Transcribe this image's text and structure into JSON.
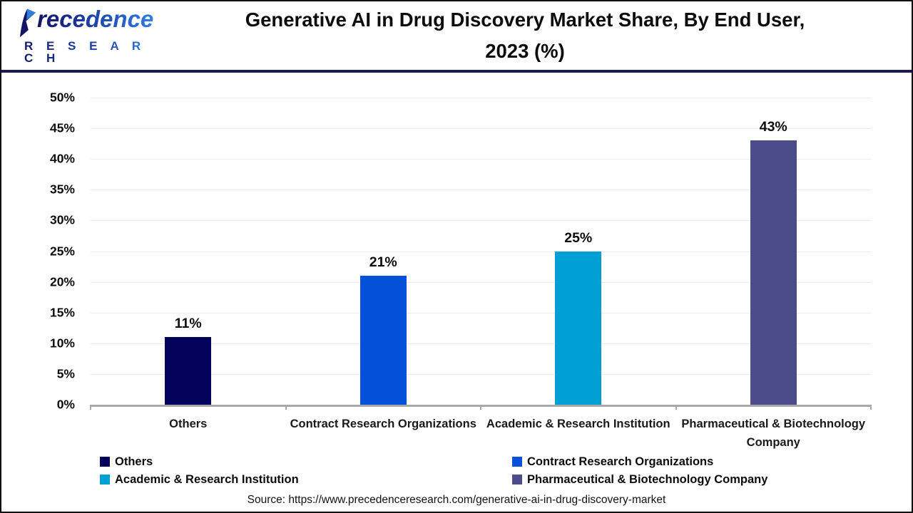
{
  "header": {
    "brand_line1": "recedence",
    "brand_line2": "R E S E A R C H",
    "title_line1": "Generative AI in Drug Discovery Market Share, By End User,",
    "title_line2": "2023 (%)"
  },
  "chart_data": {
    "type": "bar",
    "title": "Generative AI in Drug Discovery Market Share, By End User, 2023 (%)",
    "categories": [
      "Others",
      "Contract Research Organizations",
      "Academic & Research Institution",
      "Pharmaceutical & Biotechnology Company"
    ],
    "values": [
      11,
      21,
      25,
      43
    ],
    "value_labels": [
      "11%",
      "21%",
      "25%",
      "43%"
    ],
    "bar_colors": [
      "#03025a",
      "#0450d8",
      "#009fd4",
      "#4d4c8a"
    ],
    "xlabel": "",
    "ylabel": "",
    "ylim": [
      0,
      50
    ],
    "ytick_step": 5,
    "ytick_labels": [
      "0%",
      "5%",
      "10%",
      "15%",
      "20%",
      "25%",
      "30%",
      "35%",
      "40%",
      "45%",
      "50%"
    ],
    "grid": true,
    "legend_position": "bottom"
  },
  "legend": {
    "items": [
      {
        "label": "Others",
        "color": "#03025a"
      },
      {
        "label": "Contract Research Organizations",
        "color": "#0450d8"
      },
      {
        "label": "Academic & Research Institution",
        "color": "#009fd4"
      },
      {
        "label": "Pharmaceutical & Biotechnology Company",
        "color": "#4d4c8a"
      }
    ]
  },
  "source": {
    "text": "Source: https://www.precedenceresearch.com/generative-ai-in-drug-discovery-market"
  }
}
